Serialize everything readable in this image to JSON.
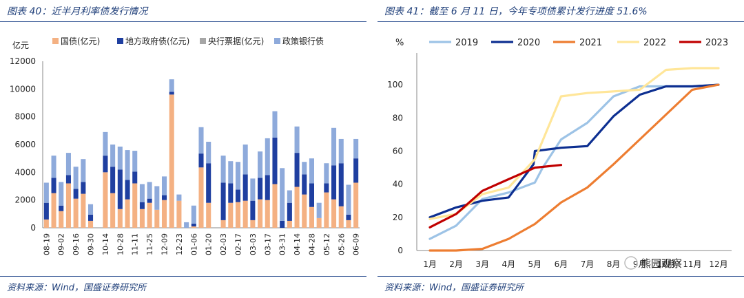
{
  "left_panel": {
    "title": "图表 40：近半月利率债发行情况",
    "source": "资料来源：Wind，国盛证券研究所"
  },
  "right_panel": {
    "title": "图表 41：截至 6 月 11 日，今年专项债累计发行进度 51.6%",
    "source": "资料来源：Wind，国盛证券研究所"
  },
  "watermark": "熊园观察",
  "chart_data": [
    {
      "type": "bar",
      "stacked": true,
      "unit_label": "亿元",
      "ylim": [
        0,
        12000
      ],
      "yticks": [
        0,
        2000,
        4000,
        6000,
        8000,
        10000,
        12000
      ],
      "legend_position": "top",
      "categories": [
        "08-19",
        "08-26",
        "09-02",
        "09-09",
        "09-16",
        "09-23",
        "09-30",
        "10-07",
        "10-14",
        "10-21",
        "10-28",
        "11-04",
        "11-11",
        "11-18",
        "11-25",
        "12-02",
        "12-09",
        "12-16",
        "12-23",
        "12-30",
        "01-06",
        "01-13",
        "01-20",
        "01-27",
        "02-03",
        "02-10",
        "02-17",
        "02-24",
        "03-03",
        "03-10",
        "03-17",
        "03-24",
        "03-31",
        "04-07",
        "04-14",
        "04-21",
        "04-28",
        "05-05",
        "05-12",
        "05-19",
        "05-26",
        "06-02",
        "06-09"
      ],
      "tick_labels": [
        "08-19",
        "",
        "09-02",
        "",
        "09-16",
        "",
        "09-30",
        "",
        "10-14",
        "",
        "10-28",
        "",
        "11-11",
        "",
        "11-25",
        "",
        "12-09",
        "",
        "12-23",
        "",
        "01-06",
        "",
        "01-20",
        "",
        "02-03",
        "",
        "02-17",
        "",
        "03-03",
        "",
        "03-17",
        "",
        "03-31",
        "",
        "04-14",
        "",
        "04-28",
        "",
        "05-12",
        "",
        "05-26",
        "",
        "06-09"
      ],
      "series": [
        {
          "name": "国债(亿元)",
          "color": "#f4b183",
          "values": [
            600,
            2500,
            1200,
            3200,
            2100,
            2450,
            500,
            0,
            4000,
            2500,
            1350,
            2050,
            3200,
            1350,
            1800,
            1300,
            2000,
            9600,
            1950,
            0,
            100,
            4350,
            1800,
            0,
            550,
            1800,
            1850,
            1950,
            550,
            2050,
            2000,
            3150,
            0,
            500,
            2950,
            2400,
            1500,
            700,
            2550,
            2050,
            1550,
            550,
            3250
          ]
        },
        {
          "name": "地方政府债(亿元)",
          "color": "#1f3fa0",
          "values": [
            1200,
            1100,
            400,
            600,
            700,
            850,
            450,
            0,
            1200,
            1900,
            2850,
            1400,
            850,
            500,
            300,
            0,
            350,
            200,
            0,
            0,
            200,
            1000,
            2850,
            0,
            2700,
            1400,
            900,
            1900,
            1400,
            1550,
            1800,
            3350,
            500,
            1300,
            2450,
            1450,
            1700,
            0,
            650,
            2450,
            3100,
            400,
            1750
          ]
        },
        {
          "name": "央行票据(亿元)",
          "color": "#a6a6a6",
          "values": [
            0,
            0,
            0,
            0,
            0,
            0,
            0,
            0,
            0,
            0,
            0,
            0,
            0,
            0,
            0,
            0,
            0,
            0,
            0,
            0,
            0,
            0,
            0,
            0,
            0,
            0,
            0,
            0,
            0,
            0,
            0,
            0,
            0,
            0,
            0,
            0,
            0,
            0,
            0,
            0,
            0,
            0,
            0
          ]
        },
        {
          "name": "政策银行债",
          "color": "#8eaadb",
          "values": [
            1450,
            1600,
            1700,
            1600,
            1600,
            1650,
            750,
            0,
            1700,
            1600,
            1650,
            2150,
            1500,
            1300,
            1200,
            1700,
            1350,
            900,
            450,
            400,
            1300,
            1900,
            1550,
            0,
            1950,
            1600,
            2000,
            2150,
            1600,
            1900,
            2650,
            1900,
            3800,
            900,
            1900,
            900,
            1800,
            1100,
            1450,
            2700,
            1750,
            2150,
            1400
          ]
        }
      ]
    },
    {
      "type": "line",
      "unit_label": "%",
      "categories": [
        "1月",
        "2月",
        "3月",
        "4月",
        "5月",
        "6月",
        "7月",
        "8月",
        "9月",
        "10月",
        "11月",
        "12月"
      ],
      "ylim": [
        0,
        115
      ],
      "yticks": [
        0,
        20,
        40,
        60,
        80,
        100
      ],
      "legend_position": "top",
      "series": [
        {
          "name": "2019",
          "color": "#9dc3e6",
          "x": [
            1,
            2,
            3,
            4,
            5,
            5.3,
            6,
            7,
            8,
            9,
            10,
            11,
            12
          ],
          "values": [
            7,
            15,
            31,
            35,
            41,
            50,
            67,
            77,
            93,
            99,
            99,
            99,
            100
          ]
        },
        {
          "name": "2020",
          "color": "#0d2f91",
          "x": [
            1,
            2,
            3,
            4,
            4.95,
            5,
            6,
            7,
            8,
            9,
            10,
            11,
            12
          ],
          "values": [
            20,
            26,
            30,
            32,
            52,
            60,
            62,
            63,
            81,
            94,
            99,
            99,
            100
          ]
        },
        {
          "name": "2021",
          "color": "#ed7d31",
          "x": [
            1,
            2,
            3,
            4,
            5,
            6,
            7,
            8,
            9,
            10,
            11,
            12
          ],
          "values": [
            0,
            0,
            1,
            7,
            16,
            29,
            38,
            52,
            67,
            82,
            97,
            100
          ]
        },
        {
          "name": "2022",
          "color": "#ffe699",
          "x": [
            1,
            2,
            3,
            4,
            5,
            6,
            7,
            8,
            9,
            10,
            11,
            12
          ],
          "values": [
            19,
            22,
            34,
            38,
            55,
            93,
            95,
            96,
            97,
            109,
            110,
            110
          ]
        },
        {
          "name": "2023",
          "color": "#c00000",
          "x": [
            1,
            2,
            3,
            4,
            5,
            6
          ],
          "values": [
            14,
            22,
            36,
            43,
            50,
            51.6
          ]
        }
      ]
    }
  ]
}
